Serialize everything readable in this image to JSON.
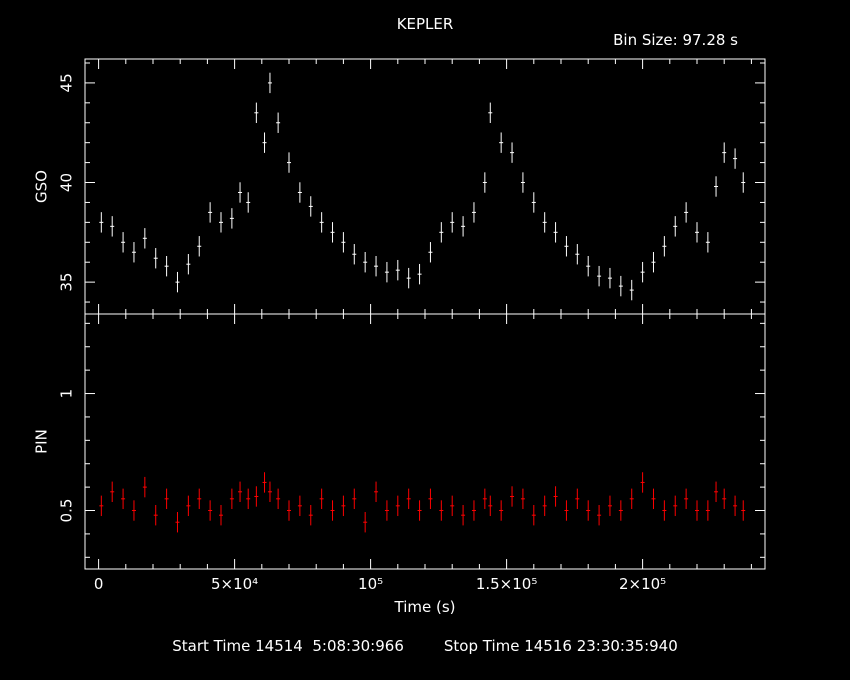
{
  "header": {
    "title": "KEPLER",
    "bin_size": "Bin Size: 97.28 s"
  },
  "footer": {
    "start_time": "Start Time 14514  5:08:30:966",
    "stop_time": "Stop Time 14516 23:30:35:940"
  },
  "colors": {
    "background": "#000000",
    "axes": "#ffffff",
    "gso": "#ffffff",
    "pin": "#ff0000"
  },
  "chart_data": [
    {
      "type": "scatter",
      "name": "gso-panel",
      "ylabel": "GSO",
      "xlabel": "",
      "xlim": [
        -5000,
        245000
      ],
      "ylim": [
        33.4,
        46.2
      ],
      "yticks": [
        35,
        40,
        45
      ],
      "yticklabels": [
        "35",
        "40",
        "45"
      ],
      "error_bars": true,
      "series": [
        {
          "color": "#ffffff",
          "x": [
            1000,
            5000,
            9000,
            13000,
            17000,
            21000,
            25000,
            29000,
            33000,
            37000,
            41000,
            45000,
            49000,
            52000,
            55000,
            58000,
            61000,
            63000,
            66000,
            70000,
            74000,
            78000,
            82000,
            86000,
            90000,
            94000,
            98000,
            102000,
            106000,
            110000,
            114000,
            118000,
            122000,
            126000,
            130000,
            134000,
            138000,
            142000,
            144000,
            148000,
            152000,
            156000,
            160000,
            164000,
            168000,
            172000,
            176000,
            180000,
            184000,
            188000,
            192000,
            196000,
            200000,
            204000,
            208000,
            212000,
            216000,
            220000,
            224000,
            227000,
            230000,
            234000,
            237000
          ],
          "y": [
            38.0,
            37.8,
            37.0,
            36.5,
            37.2,
            36.2,
            35.8,
            35.0,
            35.9,
            36.8,
            38.5,
            38.0,
            38.2,
            39.5,
            39.0,
            43.5,
            42.0,
            45.0,
            43.0,
            41.0,
            39.5,
            38.8,
            38.0,
            37.5,
            37.0,
            36.4,
            36.0,
            35.8,
            35.5,
            35.6,
            35.2,
            35.4,
            36.5,
            37.5,
            38.0,
            37.8,
            38.5,
            40.0,
            43.5,
            42.0,
            41.5,
            40.0,
            39.0,
            38.0,
            37.5,
            36.8,
            36.4,
            35.8,
            35.3,
            35.2,
            34.8,
            34.6,
            35.5,
            36.0,
            36.8,
            37.8,
            38.5,
            37.5,
            37.0,
            39.8,
            41.5,
            41.2,
            40.0
          ]
        }
      ]
    },
    {
      "type": "scatter",
      "name": "pin-panel",
      "ylabel": "PIN",
      "xlabel": "Time (s)",
      "xlim": [
        -5000,
        245000
      ],
      "ylim": [
        0.25,
        1.34
      ],
      "yticks": [
        0.5,
        1
      ],
      "yticklabels": [
        "0.5",
        "1"
      ],
      "xticks": [
        0,
        50000,
        100000,
        150000,
        200000
      ],
      "xticklabels": [
        "0",
        "5×10⁴",
        "10⁵",
        "1.5×10⁵",
        "2×10⁵"
      ],
      "error_bars": true,
      "series": [
        {
          "color": "#ff0000",
          "x": [
            1000,
            5000,
            9000,
            13000,
            17000,
            21000,
            25000,
            29000,
            33000,
            37000,
            41000,
            45000,
            49000,
            52000,
            55000,
            58000,
            61000,
            63000,
            66000,
            70000,
            74000,
            78000,
            82000,
            86000,
            90000,
            94000,
            98000,
            102000,
            106000,
            110000,
            114000,
            118000,
            122000,
            126000,
            130000,
            134000,
            138000,
            142000,
            144000,
            148000,
            152000,
            156000,
            160000,
            164000,
            168000,
            172000,
            176000,
            180000,
            184000,
            188000,
            192000,
            196000,
            200000,
            204000,
            208000,
            212000,
            216000,
            220000,
            224000,
            227000,
            230000,
            234000,
            237000
          ],
          "y": [
            0.52,
            0.58,
            0.55,
            0.5,
            0.6,
            0.48,
            0.55,
            0.45,
            0.52,
            0.55,
            0.5,
            0.48,
            0.55,
            0.58,
            0.55,
            0.56,
            0.62,
            0.58,
            0.55,
            0.5,
            0.52,
            0.48,
            0.55,
            0.5,
            0.52,
            0.55,
            0.45,
            0.58,
            0.5,
            0.52,
            0.55,
            0.5,
            0.55,
            0.5,
            0.52,
            0.48,
            0.5,
            0.55,
            0.52,
            0.5,
            0.56,
            0.55,
            0.48,
            0.52,
            0.56,
            0.5,
            0.55,
            0.5,
            0.48,
            0.52,
            0.5,
            0.55,
            0.62,
            0.55,
            0.5,
            0.52,
            0.55,
            0.5,
            0.5,
            0.58,
            0.55,
            0.52,
            0.5
          ]
        }
      ]
    }
  ]
}
